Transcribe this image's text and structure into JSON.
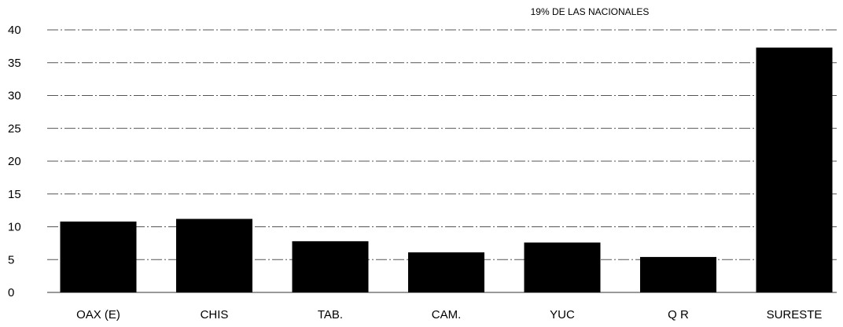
{
  "chart_data": {
    "type": "bar",
    "title": "",
    "annotation": "19% DE LAS NACIONALES",
    "xlabel": "",
    "ylabel": "",
    "categories": [
      "OAX  (E)",
      "CHIS",
      "TAB.",
      "CAM.",
      "YUC",
      "Q R",
      "SURESTE"
    ],
    "values": [
      10.8,
      11.2,
      7.8,
      6.1,
      7.6,
      5.4,
      37.3
    ],
    "ylim": [
      0,
      40
    ],
    "yticks": [
      0,
      5,
      10,
      15,
      20,
      25,
      30,
      35,
      40
    ],
    "grid": true,
    "legend": "none",
    "bar_color": "#000000"
  }
}
